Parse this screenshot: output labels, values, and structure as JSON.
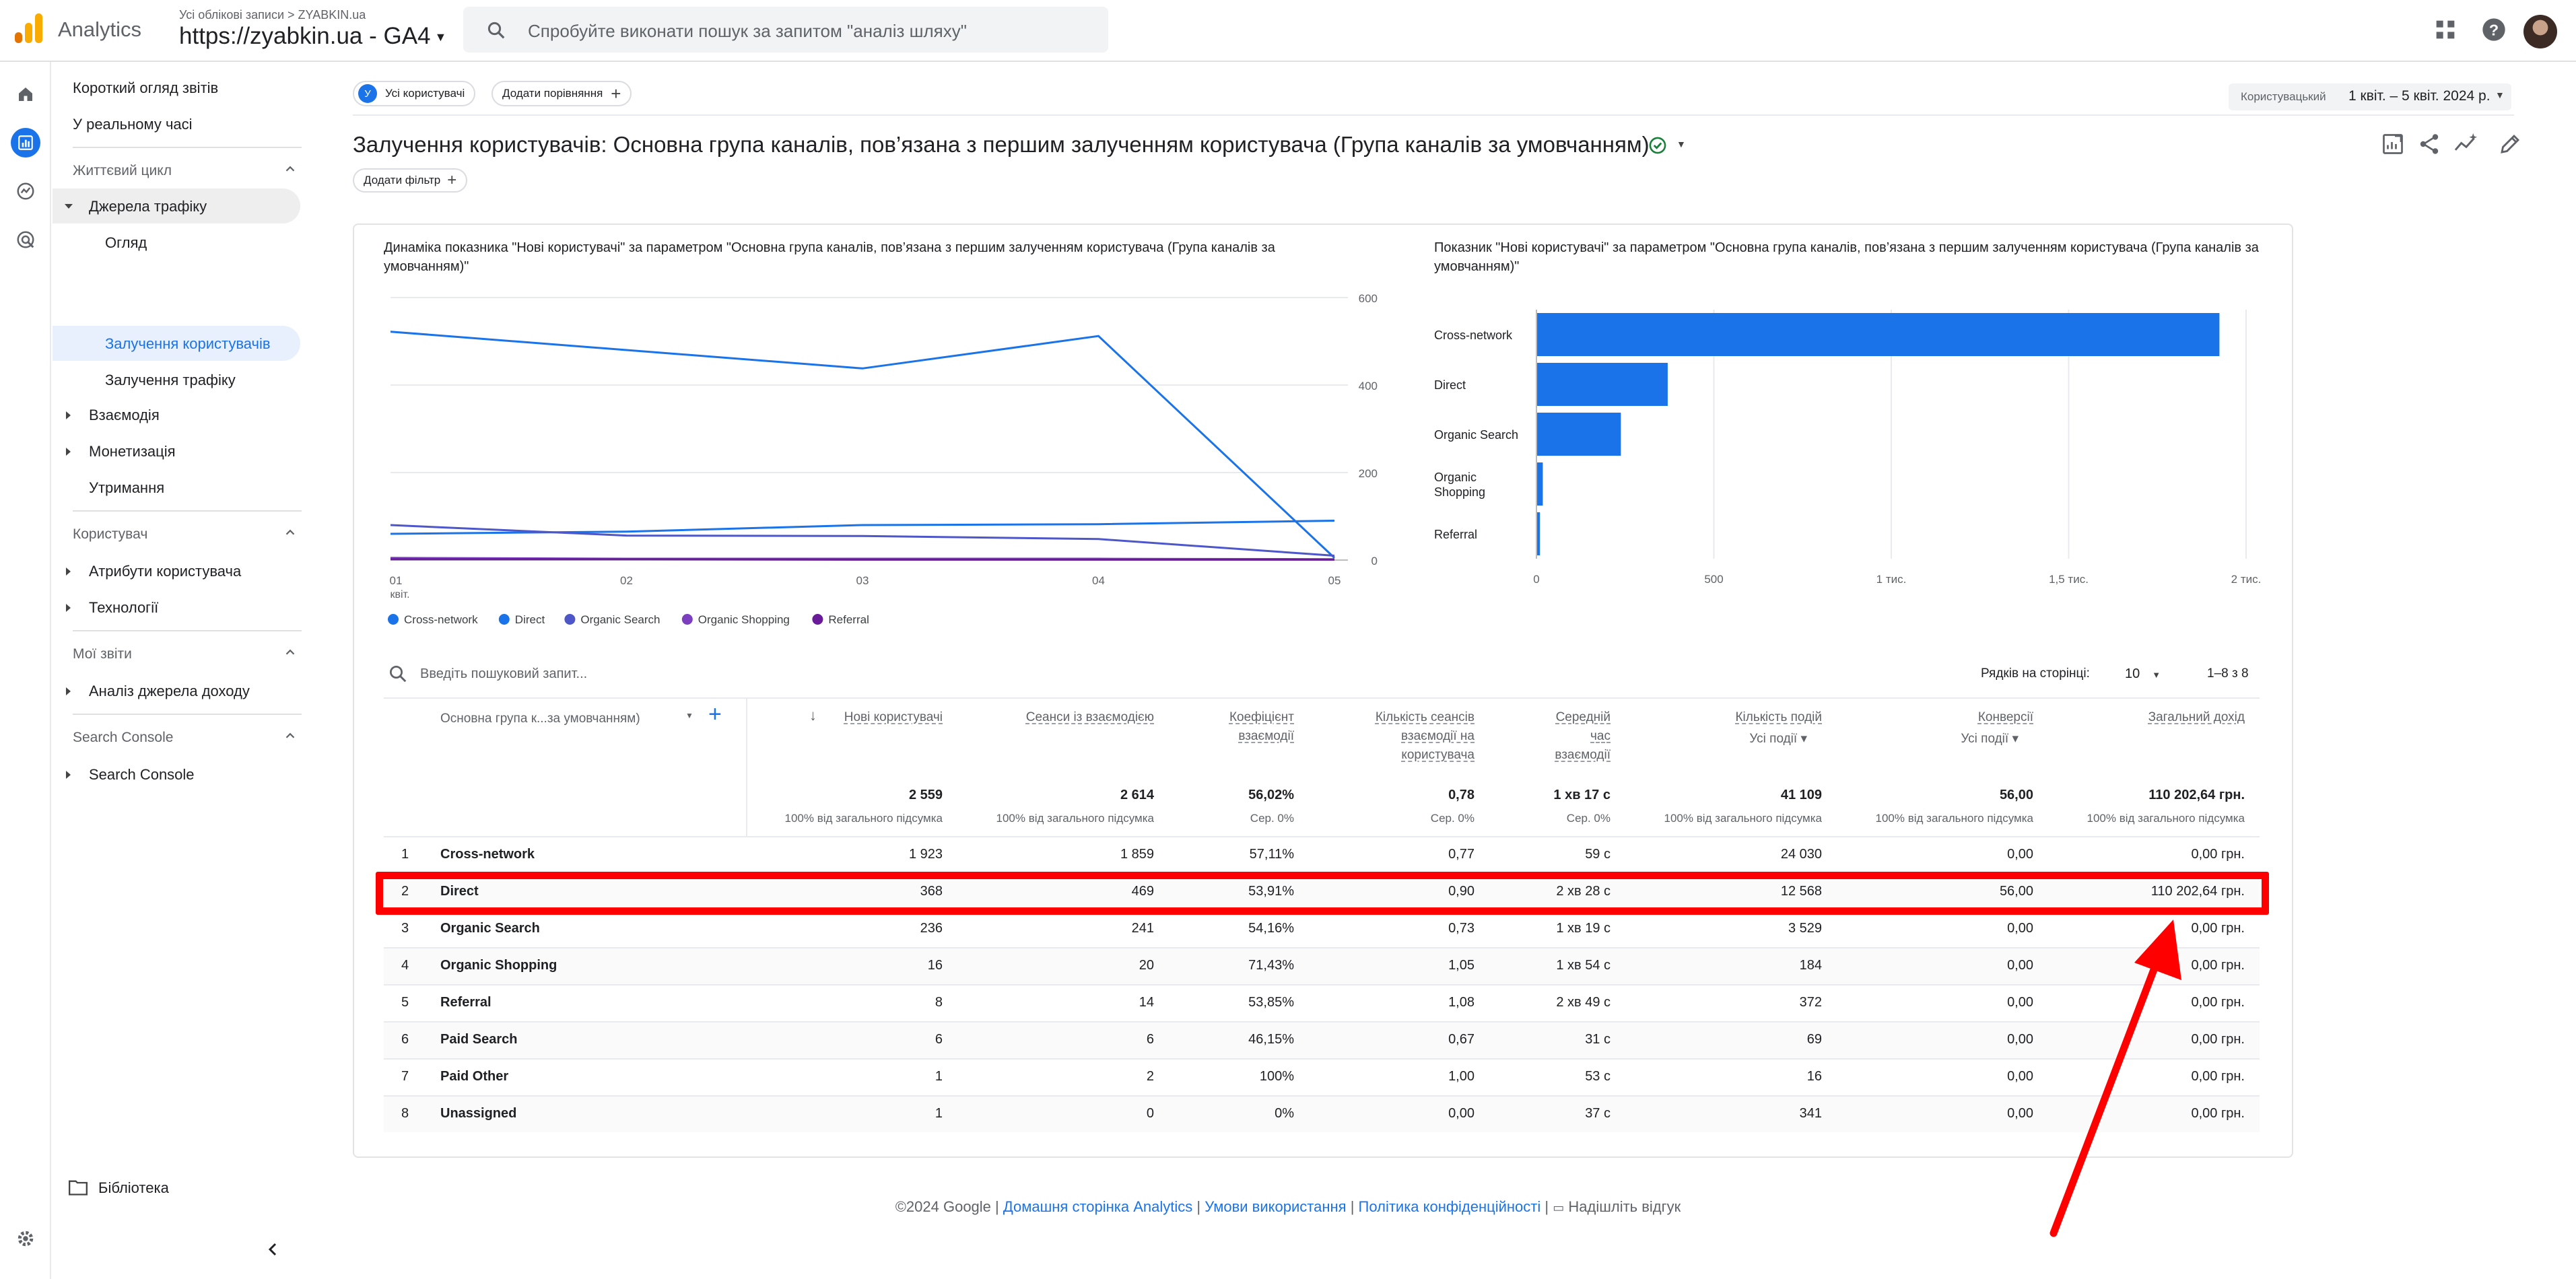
{
  "topbar": {
    "app_name": "Analytics",
    "account_path": "Усі облікові записи > ZYABKIN.ua",
    "property": "https://zyabkin.ua - GA4",
    "search_placeholder": "Спробуйте виконати пошук за запитом \"аналіз шляху\""
  },
  "sidebar": {
    "snapshot": "Короткий огляд звітів",
    "realtime": "У реальному часі",
    "lifecycle": "Життєвий цикл",
    "acquisition": "Джерела трафіку",
    "overview": "Огляд",
    "user_acq": "Залучення користувачів",
    "traffic_acq": "Залучення трафіку",
    "engagement": "Взаємодія",
    "monetization": "Монетизація",
    "retention": "Утримання",
    "user_section": "Користувач",
    "user_attrs": "Атрибути користувача",
    "tech": "Технології",
    "my_reports": "Мої звіти",
    "revenue_analysis": "Аналіз джерела доходу",
    "sc_section": "Search Console",
    "sc_item": "Search Console",
    "library": "Бібліотека"
  },
  "main": {
    "all_users_badge": "У",
    "all_users": "Усі користувачі",
    "add_comparison": "Додати порівняння",
    "title": "Залучення користувачів: Основна група каналів, пов’язана з першим залученням користувача (Група каналів за умовчанням)",
    "add_filter": "Додати фільтр",
    "date_label": "Користувацький",
    "date_range": "1 квіт. – 5 квіт. 2024 р."
  },
  "line_chart_title": "Динаміка показника \"Нові користувачі\" за параметром \"Основна група каналів, пов’язана з першим залученням користувача (Група каналів за умовчанням)\"",
  "bar_chart_title": "Показник \"Нові користувачі\" за параметром \"Основна група каналів, пов’язана з першим залученням користувача (Група каналів за умовчанням)\"",
  "chart_data": [
    {
      "type": "line",
      "x": [
        "01",
        "02",
        "03",
        "04",
        "05"
      ],
      "x_sub": "квіт.",
      "ylim": [
        0,
        600
      ],
      "yticks": [
        "600",
        "400",
        "200",
        "0"
      ],
      "series": [
        {
          "name": "Cross-network",
          "color": "#1a73e8",
          "values": [
            522,
            480,
            438,
            512,
            5
          ]
        },
        {
          "name": "Direct",
          "color": "#1a73e8",
          "values": [
            60,
            65,
            80,
            82,
            90
          ]
        },
        {
          "name": "Organic Search",
          "color": "#4d57c9",
          "values": [
            80,
            56,
            55,
            48,
            10
          ]
        },
        {
          "name": "Organic Shopping",
          "color": "#7b3fbf",
          "values": [
            5,
            3,
            3,
            3,
            2
          ]
        },
        {
          "name": "Referral",
          "color": "#6a1b9a",
          "values": [
            2,
            2,
            1,
            1,
            1
          ]
        }
      ]
    },
    {
      "type": "bar",
      "orientation": "horizontal",
      "categories": [
        "Cross-network",
        "Direct",
        "Organic Search",
        "Organic\nShopping",
        "Referral"
      ],
      "values": [
        1923,
        368,
        236,
        16,
        8
      ],
      "xlim": [
        0,
        2000
      ],
      "xticks": [
        "0",
        "500",
        "1 тис.",
        "1,5 тис.",
        "2 тис."
      ],
      "color": "#1a73e8"
    },
    {
      "type": "table",
      "search_placeholder": "Введіть пошуковий запит...",
      "rows_per_page_label": "Рядків на сторінці:",
      "rows_per_page": "10",
      "pagination": "1–8 з 8",
      "dim_header": "Основна група к...за умовчанням)",
      "metric_headers": [
        {
          "lines": [
            "Нові користувачі"
          ]
        },
        {
          "lines": [
            "Сеанси із взаємодією"
          ]
        },
        {
          "lines": [
            "Коефіцієнт",
            "взаємодії"
          ]
        },
        {
          "lines": [
            "Кількість сеансів",
            "взаємодії на",
            "користувача"
          ]
        },
        {
          "lines": [
            "Середній",
            "час",
            "взаємодії"
          ]
        },
        {
          "lines": [
            "Кількість подій"
          ],
          "sub": "Усі події"
        },
        {
          "lines": [
            "Конверсії"
          ],
          "sub": "Усі події"
        },
        {
          "lines": [
            "Загальний дохід"
          ]
        }
      ],
      "totals": [
        "2 559",
        "2 614",
        "56,02%",
        "0,78",
        "1 хв 17 с",
        "41 109",
        "56,00",
        "110 202,64 грн."
      ],
      "totals_sub": [
        "100% від загального підсумка",
        "100% від загального підсумка",
        "Сер. 0%",
        "Сер. 0%",
        "Сер. 0%",
        "100% від загального підсумка",
        "100% від загального підсумка",
        "100% від загального підсумка"
      ],
      "rows": [
        {
          "i": "1",
          "name": "Cross-network",
          "v": [
            "1 923",
            "1 859",
            "57,11%",
            "0,77",
            "59 с",
            "24 030",
            "0,00",
            "0,00 грн."
          ]
        },
        {
          "i": "2",
          "name": "Direct",
          "v": [
            "368",
            "469",
            "53,91%",
            "0,90",
            "2 хв 28 с",
            "12 568",
            "56,00",
            "110 202,64 грн."
          ]
        },
        {
          "i": "3",
          "name": "Organic Search",
          "v": [
            "236",
            "241",
            "54,16%",
            "0,73",
            "1 хв 19 с",
            "3 529",
            "0,00",
            "0,00 грн."
          ]
        },
        {
          "i": "4",
          "name": "Organic Shopping",
          "v": [
            "16",
            "20",
            "71,43%",
            "1,05",
            "1 хв 54 с",
            "184",
            "0,00",
            "0,00 грн."
          ]
        },
        {
          "i": "5",
          "name": "Referral",
          "v": [
            "8",
            "14",
            "53,85%",
            "1,08",
            "2 хв 49 с",
            "372",
            "0,00",
            "0,00 грн."
          ]
        },
        {
          "i": "6",
          "name": "Paid Search",
          "v": [
            "6",
            "6",
            "46,15%",
            "0,67",
            "31 с",
            "69",
            "0,00",
            "0,00 грн."
          ]
        },
        {
          "i": "7",
          "name": "Paid Other",
          "v": [
            "1",
            "2",
            "100%",
            "1,00",
            "53 с",
            "16",
            "0,00",
            "0,00 грн."
          ]
        },
        {
          "i": "8",
          "name": "Unassigned",
          "v": [
            "1",
            "0",
            "0%",
            "0,00",
            "37 с",
            "341",
            "0,00",
            "0,00 грн."
          ]
        }
      ]
    }
  ],
  "footer": {
    "copyright": "©2024 Google |",
    "home": "Домашня сторінка Analytics",
    "terms": "Умови використання",
    "privacy": "Політика конфіденційності",
    "feedback": "Надішліть відгук",
    "sep": "|"
  }
}
